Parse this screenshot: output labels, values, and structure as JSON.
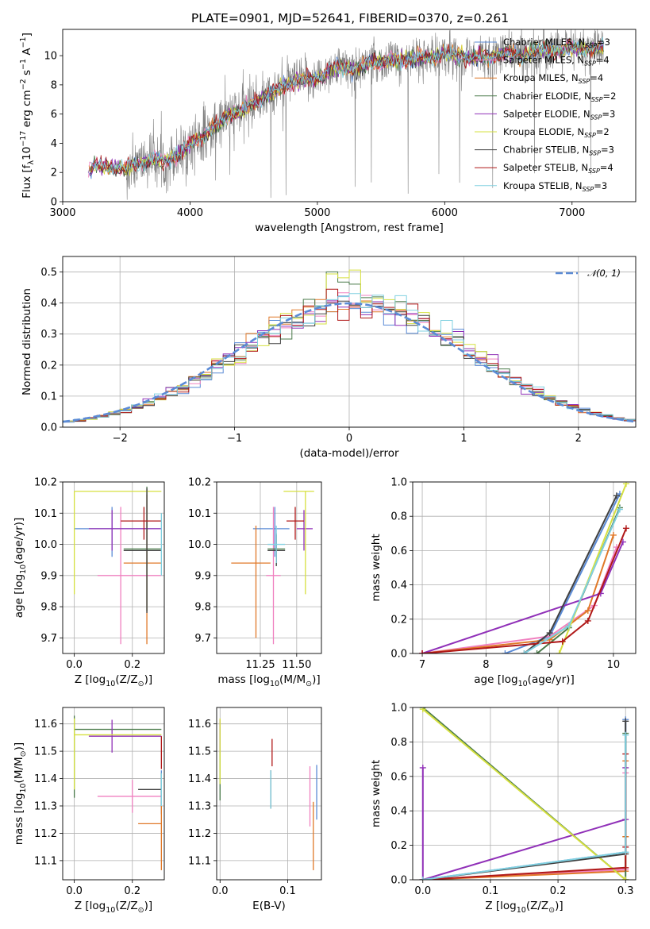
{
  "title": "PLATE=0901, MJD=52641, FIBERID=0370, z=0.261",
  "series": [
    {
      "name": "Chabrier MILES, N",
      "sub": "SSP",
      "suffix": "=3",
      "color": "#5b8bd6"
    },
    {
      "name": "Salpeter MILES, N",
      "sub": "SSP",
      "suffix": "=4",
      "color": "#f080c0"
    },
    {
      "name": "Kroupa MILES, N",
      "sub": "SSP",
      "suffix": "=4",
      "color": "#e07828"
    },
    {
      "name": "Chabrier ELODIE, N",
      "sub": "SSP",
      "suffix": "=2",
      "color": "#4a7a4a"
    },
    {
      "name": "Salpeter ELODIE, N",
      "sub": "SSP",
      "suffix": "=3",
      "color": "#9030b8"
    },
    {
      "name": "Kroupa ELODIE, N",
      "sub": "SSP",
      "suffix": "=2",
      "color": "#d6e040"
    },
    {
      "name": "Chabrier STELIB, N",
      "sub": "SSP",
      "suffix": "=3",
      "color": "#404040"
    },
    {
      "name": "Salpeter STELIB, N",
      "sub": "SSP",
      "suffix": "=4",
      "color": "#b01818"
    },
    {
      "name": "Kroupa STELIB, N",
      "sub": "SSP",
      "suffix": "=3",
      "color": "#80d0e0"
    }
  ],
  "chart_data": [
    {
      "id": "spectrum",
      "type": "line",
      "xlabel": "wavelength [Angstrom, rest frame]",
      "ylabel": "Flux [f",
      "ylabel_sub": "λ",
      "ylabel_rest": "10",
      "ylabel_sup": "−17",
      "ylabel_end": " erg cm",
      "ylabel_sup2": "−2",
      "ylabel_end2": " s",
      "ylabel_sup3": "−1",
      "ylabel_end3": " A",
      "ylabel_sup4": "−1",
      "ylabel_close": "]",
      "xlim": [
        3000,
        7500
      ],
      "ylim": [
        0,
        11.8
      ],
      "xticks": [
        "3000",
        "4000",
        "5000",
        "6000",
        "7000"
      ],
      "yticks": [
        "0",
        "2",
        "4",
        "6",
        "8",
        "10"
      ],
      "grid": false,
      "legend": "upper right",
      "data_color": "#808080",
      "model_x": [
        3200,
        3250,
        3300,
        3400,
        3500,
        3600,
        3700,
        3800,
        3900,
        4000,
        4100,
        4200,
        4300,
        4400,
        4500,
        4600,
        4700,
        4800,
        4900,
        5000,
        5100,
        5200,
        5300,
        5400,
        5500,
        5600,
        5700,
        5800,
        5900,
        6000,
        6100,
        6200,
        6300,
        6400,
        6500,
        6600,
        6700,
        6800,
        6900,
        7000,
        7100,
        7200
      ],
      "model_y": [
        2.0,
        2.5,
        2.4,
        2.3,
        2.3,
        2.6,
        3.0,
        2.7,
        3.2,
        4.0,
        4.4,
        5.2,
        5.9,
        6.2,
        6.8,
        7.2,
        7.7,
        8.2,
        8.4,
        8.4,
        9.1,
        9.2,
        9.0,
        9.5,
        9.6,
        9.7,
        9.7,
        9.9,
        9.8,
        10.2,
        10.0,
        9.8,
        9.9,
        10.0,
        10.2,
        10.0,
        10.3,
        10.4,
        10.3,
        10.5,
        10.4,
        10.5
      ]
    },
    {
      "id": "residuals",
      "type": "step",
      "xlabel": "(data-model)/error",
      "ylabel": "Normed distribution",
      "xlim": [
        -2.5,
        2.5
      ],
      "ylim": [
        0,
        0.55
      ],
      "xticks": [
        "−2",
        "−1",
        "0",
        "1",
        "2"
      ],
      "yticks": [
        "0.0",
        "0.1",
        "0.2",
        "0.3",
        "0.4",
        "0.5"
      ],
      "grid": true,
      "legend": "upper right",
      "gauss_label": "𝒩(0, 1)",
      "gauss_color": "#5b8bd6"
    },
    {
      "id": "age_vs_Z",
      "type": "errorbar",
      "xlabel": "Z [log",
      "xlabel_sub": "10",
      "xlabel_rest": "(Z/Z",
      "xlabel_sub2": "⊙",
      "xlabel_end": ")]",
      "ylabel": "age  [log",
      "ylabel_sub": "10",
      "ylabel_rest": "(age/yr)]",
      "xlim": [
        -0.04,
        0.31
      ],
      "ylim": [
        9.65,
        10.2
      ],
      "xticks": [
        "0.0",
        "0.2"
      ],
      "yticks": [
        "9.7",
        "9.8",
        "9.9",
        "10.0",
        "10.1",
        "10.2"
      ],
      "grid": true,
      "points": [
        {
          "x": 0.13,
          "xerr": [
            0.13,
            0.17
          ],
          "y": 10.05,
          "yerr": [
            0.09,
            0.07
          ]
        },
        {
          "x": 0.16,
          "xerr": [
            0.08,
            0.14
          ],
          "y": 9.9,
          "yerr": [
            0.22,
            0.22
          ]
        },
        {
          "x": 0.25,
          "xerr": [
            0.08,
            0.05
          ],
          "y": 9.94,
          "yerr": [
            0.26,
            0.22
          ]
        },
        {
          "x": 0.25,
          "xerr": [
            0.08,
            0.05
          ],
          "y": 9.985,
          "yerr": [
            0.2,
            0.2
          ]
        },
        {
          "x": 0.13,
          "xerr": [
            0.08,
            0.17
          ],
          "y": 10.05,
          "yerr": [
            0.07,
            0.06
          ]
        },
        {
          "x": 0.0,
          "xerr": [
            0.0,
            0.3
          ],
          "y": 10.17,
          "yerr": [
            0.33,
            0.0
          ]
        },
        {
          "x": 0.25,
          "xerr": [
            0.08,
            0.05
          ],
          "y": 9.98,
          "yerr": [
            0.2,
            0.2
          ]
        },
        {
          "x": 0.24,
          "xerr": [
            0.08,
            0.06
          ],
          "y": 10.075,
          "yerr": [
            0.06,
            0.045
          ]
        },
        {
          "x": 0.3,
          "xerr": [
            0.0,
            0.0
          ],
          "y": 10.0,
          "yerr": [
            0.1,
            0.1
          ]
        }
      ]
    },
    {
      "id": "age_vs_mass",
      "type": "errorbar",
      "xlabel": "mass [log",
      "xlabel_sub": "10",
      "xlabel_rest": "(M/M",
      "xlabel_sub2": "⊙",
      "xlabel_end": ")]",
      "xlim": [
        10.95,
        11.67
      ],
      "ylim": [
        9.65,
        10.2
      ],
      "xticks": [
        "11.25",
        "11.50"
      ],
      "yticks": [
        "9.7",
        "9.8",
        "9.9",
        "10.0",
        "10.1",
        "10.2"
      ],
      "grid": true,
      "points": [
        {
          "x": 11.35,
          "xerr": [
            0.15,
            0.1
          ],
          "y": 10.05,
          "yerr": [
            0.09,
            0.07
          ]
        },
        {
          "x": 11.34,
          "xerr": [
            0.05,
            0.05
          ],
          "y": 9.9,
          "yerr": [
            0.22,
            0.22
          ]
        },
        {
          "x": 11.22,
          "xerr": [
            0.17,
            0.1
          ],
          "y": 9.94,
          "yerr": [
            0.24,
            0.12
          ]
        },
        {
          "x": 11.36,
          "xerr": [
            0.06,
            0.06
          ],
          "y": 9.985,
          "yerr": [
            0.05,
            0.05
          ]
        },
        {
          "x": 11.55,
          "xerr": [
            0.05,
            0.06
          ],
          "y": 10.05,
          "yerr": [
            0.07,
            0.06
          ]
        },
        {
          "x": 11.56,
          "xerr": [
            0.15,
            0.06
          ],
          "y": 10.17,
          "yerr": [
            0.33,
            0.0
          ]
        },
        {
          "x": 11.36,
          "xerr": [
            0.06,
            0.06
          ],
          "y": 9.98,
          "yerr": [
            0.05,
            0.05
          ]
        },
        {
          "x": 11.49,
          "xerr": [
            0.06,
            0.06
          ],
          "y": 10.075,
          "yerr": [
            0.06,
            0.045
          ]
        },
        {
          "x": 11.36,
          "xerr": [
            0.06,
            0.06
          ],
          "y": 10.0,
          "yerr": [
            0.06,
            0.06
          ]
        }
      ]
    },
    {
      "id": "mw_vs_age",
      "type": "line",
      "xlabel": "age  [log",
      "xlabel_sub": "10",
      "xlabel_rest": "(age/yr)]",
      "ylabel": "mass weight",
      "xlim": [
        6.85,
        10.35
      ],
      "ylim": [
        0,
        1
      ],
      "xticks": [
        "7",
        "8",
        "9",
        "10"
      ],
      "yticks": [
        "0.0",
        "0.2",
        "0.4",
        "0.6",
        "0.8",
        "1.0"
      ],
      "grid": true,
      "lines": [
        [
          [
            8.3,
            0.0
          ],
          [
            9.0,
            0.1
          ],
          [
            10.1,
            0.93
          ]
        ],
        [
          [
            7.0,
            0.0
          ],
          [
            9.0,
            0.1
          ],
          [
            9.7,
            0.28
          ],
          [
            10.05,
            0.62
          ]
        ],
        [
          [
            7.0,
            0.0
          ],
          [
            9.0,
            0.08
          ],
          [
            9.6,
            0.25
          ],
          [
            10.0,
            0.69
          ]
        ],
        [
          [
            8.8,
            0.0
          ],
          [
            9.3,
            0.15
          ],
          [
            10.1,
            0.85
          ]
        ],
        [
          [
            7.0,
            0.0
          ],
          [
            9.8,
            0.35
          ],
          [
            10.15,
            0.65
          ]
        ],
        [
          [
            9.15,
            0.0
          ],
          [
            10.2,
            0.99
          ]
        ],
        [
          [
            8.6,
            0.0
          ],
          [
            9.0,
            0.12
          ],
          [
            10.05,
            0.92
          ]
        ],
        [
          [
            7.0,
            0.0
          ],
          [
            9.2,
            0.07
          ],
          [
            9.6,
            0.19
          ],
          [
            10.2,
            0.73
          ]
        ],
        [
          [
            8.6,
            0.0
          ],
          [
            9.3,
            0.16
          ],
          [
            10.1,
            0.84
          ]
        ]
      ]
    },
    {
      "id": "mass_vs_Z",
      "type": "errorbar",
      "xlabel": "Z [log",
      "xlabel_sub": "10",
      "xlabel_rest": "(Z/Z",
      "xlabel_sub2": "⊙",
      "xlabel_end": ")]",
      "ylabel": "mass [log",
      "ylabel_sub": "10",
      "ylabel_rest": "(M/M",
      "ylabel_sub2": "⊙",
      "ylabel_end": ")]",
      "xlim": [
        -0.04,
        0.31
      ],
      "ylim": [
        11.03,
        11.66
      ],
      "xticks": [
        "0.0",
        "0.2"
      ],
      "yticks": [
        "11.1",
        "11.2",
        "11.3",
        "11.4",
        "11.5",
        "11.6"
      ],
      "grid": true,
      "points": [
        {
          "x": 0.3,
          "xerr": [
            0.0,
            0.0
          ],
          "y": 11.35,
          "yerr": [
            0.08,
            0.08
          ]
        },
        {
          "x": 0.2,
          "xerr": [
            0.12,
            0.1
          ],
          "y": 11.335,
          "yerr": [
            0.06,
            0.06
          ]
        },
        {
          "x": 0.3,
          "xerr": [
            0.08,
            0.0
          ],
          "y": 11.235,
          "yerr": [
            0.17,
            0.08
          ]
        },
        {
          "x": 0.0,
          "xerr": [
            0.0,
            0.3
          ],
          "y": 11.58,
          "yerr": [
            0.25,
            0.05
          ]
        },
        {
          "x": 0.13,
          "xerr": [
            0.08,
            0.17
          ],
          "y": 11.555,
          "yerr": [
            0.06,
            0.06
          ]
        },
        {
          "x": 0.0,
          "xerr": [
            0.0,
            0.3
          ],
          "y": 11.56,
          "yerr": [
            0.2,
            0.06
          ]
        },
        {
          "x": 0.3,
          "xerr": [
            0.08,
            0.0
          ],
          "y": 11.36,
          "yerr": [
            0.06,
            0.06
          ]
        },
        {
          "x": 0.3,
          "xerr": [
            0.0,
            0.0
          ],
          "y": 11.495,
          "yerr": [
            0.06,
            0.06
          ]
        },
        {
          "x": 0.3,
          "xerr": [
            0.0,
            0.0
          ],
          "y": 11.36,
          "yerr": [
            0.06,
            0.06
          ]
        }
      ]
    },
    {
      "id": "mass_vs_ebv",
      "type": "errorbar",
      "xlabel": "E(B-V)",
      "xlim": [
        -0.005,
        0.15
      ],
      "ylim": [
        11.03,
        11.66
      ],
      "xticks": [
        "0.0",
        "0.1"
      ],
      "yticks": [
        "11.1",
        "11.2",
        "11.3",
        "11.4",
        "11.5",
        "11.6"
      ],
      "grid": true,
      "points": [
        {
          "x": 0.143,
          "xerr": [
            0,
            0
          ],
          "y": 11.35,
          "yerr": [
            0.1,
            0.1
          ]
        },
        {
          "x": 0.133,
          "xerr": [
            0,
            0
          ],
          "y": 11.335,
          "yerr": [
            0.11,
            0.11
          ]
        },
        {
          "x": 0.138,
          "xerr": [
            0,
            0
          ],
          "y": 11.235,
          "yerr": [
            0.17,
            0.08
          ]
        },
        {
          "x": 0.0,
          "xerr": [
            0,
            0
          ],
          "y": 11.5,
          "yerr": [
            0.18,
            0.1
          ]
        },
        {
          "x": 0.0,
          "xerr": [
            0,
            0
          ],
          "y": 11.555,
          "yerr": [
            0.06,
            0.06
          ]
        },
        {
          "x": 0.0,
          "xerr": [
            0,
            0
          ],
          "y": 11.56,
          "yerr": [
            0.18,
            0.06
          ]
        },
        {
          "x": 0.075,
          "xerr": [
            0,
            0
          ],
          "y": 11.36,
          "yerr": [
            0.07,
            0.07
          ]
        },
        {
          "x": 0.077,
          "xerr": [
            0,
            0
          ],
          "y": 11.495,
          "yerr": [
            0.05,
            0.05
          ]
        },
        {
          "x": 0.075,
          "xerr": [
            0,
            0
          ],
          "y": 11.36,
          "yerr": [
            0.07,
            0.07
          ]
        }
      ]
    },
    {
      "id": "mw_vs_Z",
      "type": "line",
      "xlabel": "Z [log",
      "xlabel_sub": "10",
      "xlabel_rest": "(Z/Z",
      "xlabel_sub2": "⊙",
      "xlabel_end": ")]",
      "ylabel": "mass weight",
      "xlim": [
        -0.015,
        0.315
      ],
      "ylim": [
        0,
        1
      ],
      "xticks": [
        "0.0",
        "0.1",
        "0.2",
        "0.3"
      ],
      "yticks": [
        "0.0",
        "0.2",
        "0.4",
        "0.6",
        "0.8",
        "1.0"
      ],
      "grid": true,
      "lines": [
        [
          [
            0.0,
            0.0
          ],
          [
            0.3,
            0.16
          ],
          [
            0.3,
            0.93
          ]
        ],
        [
          [
            0.0,
            0.0
          ],
          [
            0.3,
            0.06
          ],
          [
            0.3,
            0.62
          ]
        ],
        [
          [
            0.0,
            0.0
          ],
          [
            0.3,
            0.05
          ],
          [
            0.3,
            0.25
          ],
          [
            0.3,
            0.69
          ]
        ],
        [
          [
            0.0,
            1.0
          ],
          [
            0.3,
            0.0
          ],
          [
            0.3,
            0.85
          ]
        ],
        [
          [
            0.0,
            0.65
          ],
          [
            0.0,
            0.0
          ],
          [
            0.3,
            0.35
          ],
          [
            0.3,
            0.65
          ]
        ],
        [
          [
            0.0,
            0.99
          ],
          [
            0.3,
            0.0
          ]
        ],
        [
          [
            0.0,
            0.0
          ],
          [
            0.3,
            0.15
          ],
          [
            0.3,
            0.92
          ]
        ],
        [
          [
            0.0,
            0.0
          ],
          [
            0.3,
            0.07
          ],
          [
            0.3,
            0.19
          ],
          [
            0.3,
            0.73
          ]
        ],
        [
          [
            0.0,
            0.0
          ],
          [
            0.3,
            0.16
          ],
          [
            0.3,
            0.84
          ]
        ]
      ]
    }
  ]
}
